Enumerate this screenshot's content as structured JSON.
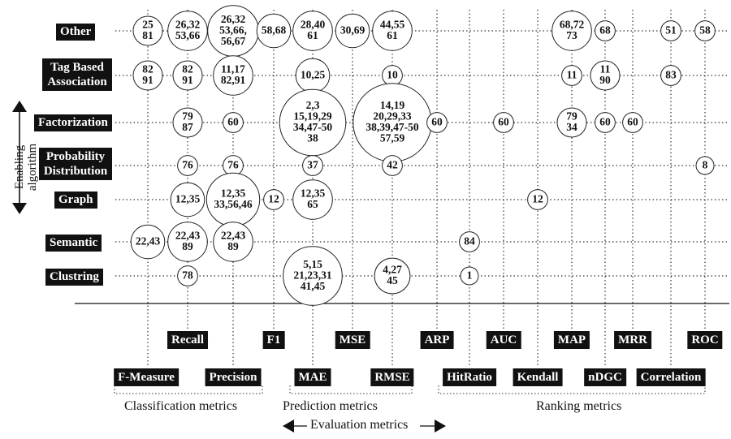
{
  "algorithms": [
    {
      "id": "other",
      "label": "Other"
    },
    {
      "id": "tag",
      "label": "Tag Based Association"
    },
    {
      "id": "factorization",
      "label": "Factorization"
    },
    {
      "id": "probability",
      "label": "Probability Distribution"
    },
    {
      "id": "graph",
      "label": "Graph"
    },
    {
      "id": "semantic",
      "label": "Semantic"
    },
    {
      "id": "clustring",
      "label": "Clustring"
    }
  ],
  "metrics": [
    {
      "id": "fmeasure",
      "label": "F-Measure"
    },
    {
      "id": "recall",
      "label": "Recall"
    },
    {
      "id": "precision",
      "label": "Precision"
    },
    {
      "id": "f1",
      "label": "F1"
    },
    {
      "id": "mae",
      "label": "MAE"
    },
    {
      "id": "mse",
      "label": "MSE"
    },
    {
      "id": "rmse",
      "label": "RMSE"
    },
    {
      "id": "arp",
      "label": "ARP"
    },
    {
      "id": "hitratio",
      "label": "HitRatio"
    },
    {
      "id": "auc",
      "label": "AUC"
    },
    {
      "id": "kendall",
      "label": "Kendall"
    },
    {
      "id": "map",
      "label": "MAP"
    },
    {
      "id": "ndgc",
      "label": "nDGC"
    },
    {
      "id": "mrr",
      "label": "MRR"
    },
    {
      "id": "correlation",
      "label": "Correlation"
    },
    {
      "id": "roc",
      "label": "ROC"
    }
  ],
  "groups": {
    "classification": "Classification  metrics",
    "prediction": "Prediction metrics",
    "ranking": "Ranking metrics",
    "evaluation": "Evaluation metrics"
  },
  "y_axis_label": "Enabling algorithm",
  "bubbles": [
    {
      "row": "other",
      "col": "fmeasure",
      "text": [
        "25",
        "81"
      ]
    },
    {
      "row": "other",
      "col": "recall",
      "text": [
        "26,32",
        "53,66"
      ]
    },
    {
      "row": "other",
      "col": "precision",
      "text": [
        "26,32",
        "53,66,",
        "56,67"
      ]
    },
    {
      "row": "other",
      "col": "f1",
      "text": [
        "58,68"
      ]
    },
    {
      "row": "other",
      "col": "mae",
      "text": [
        "28,40",
        "61"
      ]
    },
    {
      "row": "other",
      "col": "mse",
      "text": [
        "30,69"
      ]
    },
    {
      "row": "other",
      "col": "rmse",
      "text": [
        "44,55",
        "61"
      ]
    },
    {
      "row": "other",
      "col": "map",
      "text": [
        "68,72",
        "73"
      ]
    },
    {
      "row": "other",
      "col": "ndgc",
      "text": [
        "68"
      ]
    },
    {
      "row": "other",
      "col": "correlation",
      "text": [
        "51"
      ]
    },
    {
      "row": "other",
      "col": "roc",
      "text": [
        "58"
      ]
    },
    {
      "row": "tag",
      "col": "fmeasure",
      "text": [
        "82",
        "91"
      ]
    },
    {
      "row": "tag",
      "col": "recall",
      "text": [
        "82",
        "91"
      ]
    },
    {
      "row": "tag",
      "col": "precision",
      "text": [
        "11,17",
        "82,91"
      ]
    },
    {
      "row": "tag",
      "col": "mae",
      "text": [
        "10,25"
      ]
    },
    {
      "row": "tag",
      "col": "rmse",
      "text": [
        "10"
      ]
    },
    {
      "row": "tag",
      "col": "map",
      "text": [
        "11"
      ]
    },
    {
      "row": "tag",
      "col": "ndgc",
      "text": [
        "11",
        "90"
      ]
    },
    {
      "row": "tag",
      "col": "correlation",
      "text": [
        "83"
      ]
    },
    {
      "row": "factorization",
      "col": "recall",
      "text": [
        "79",
        "87"
      ]
    },
    {
      "row": "factorization",
      "col": "precision",
      "text": [
        "60"
      ]
    },
    {
      "row": "factorization",
      "col": "mae",
      "text": [
        "2,3",
        "15,19,29",
        "34,47-50",
        "38"
      ]
    },
    {
      "row": "factorization",
      "col": "rmse",
      "text": [
        "14,19",
        "20,29,33",
        "38,39,47-50",
        "57,59"
      ]
    },
    {
      "row": "factorization",
      "col": "arp",
      "text": [
        "60"
      ]
    },
    {
      "row": "factorization",
      "col": "auc",
      "text": [
        "60"
      ]
    },
    {
      "row": "factorization",
      "col": "map",
      "text": [
        "79",
        "34"
      ]
    },
    {
      "row": "factorization",
      "col": "ndgc",
      "text": [
        "60"
      ]
    },
    {
      "row": "factorization",
      "col": "mrr",
      "text": [
        "60"
      ]
    },
    {
      "row": "probability",
      "col": "recall",
      "text": [
        "76"
      ]
    },
    {
      "row": "probability",
      "col": "precision",
      "text": [
        "76"
      ]
    },
    {
      "row": "probability",
      "col": "mae",
      "text": [
        "37"
      ]
    },
    {
      "row": "probability",
      "col": "rmse",
      "text": [
        "42"
      ]
    },
    {
      "row": "probability",
      "col": "roc",
      "text": [
        "8"
      ]
    },
    {
      "row": "graph",
      "col": "recall",
      "text": [
        "12,35"
      ]
    },
    {
      "row": "graph",
      "col": "precision",
      "text": [
        "12,35",
        "33,56,46"
      ]
    },
    {
      "row": "graph",
      "col": "f1",
      "text": [
        "12"
      ]
    },
    {
      "row": "graph",
      "col": "mae",
      "text": [
        "12,35",
        "65"
      ]
    },
    {
      "row": "graph",
      "col": "kendall",
      "text": [
        "12"
      ]
    },
    {
      "row": "semantic",
      "col": "fmeasure",
      "text": [
        "22,43"
      ]
    },
    {
      "row": "semantic",
      "col": "recall",
      "text": [
        "22,43",
        "89"
      ]
    },
    {
      "row": "semantic",
      "col": "precision",
      "text": [
        "22,43",
        "89"
      ]
    },
    {
      "row": "semantic",
      "col": "hitratio",
      "text": [
        "84"
      ]
    },
    {
      "row": "clustring",
      "col": "recall",
      "text": [
        "78"
      ]
    },
    {
      "row": "clustring",
      "col": "mae",
      "text": [
        "5,15",
        "21,23,31",
        "41,45"
      ]
    },
    {
      "row": "clustring",
      "col": "rmse",
      "text": [
        "4,27",
        "45"
      ]
    },
    {
      "row": "clustring",
      "col": "hitratio",
      "text": [
        "1"
      ]
    }
  ]
}
